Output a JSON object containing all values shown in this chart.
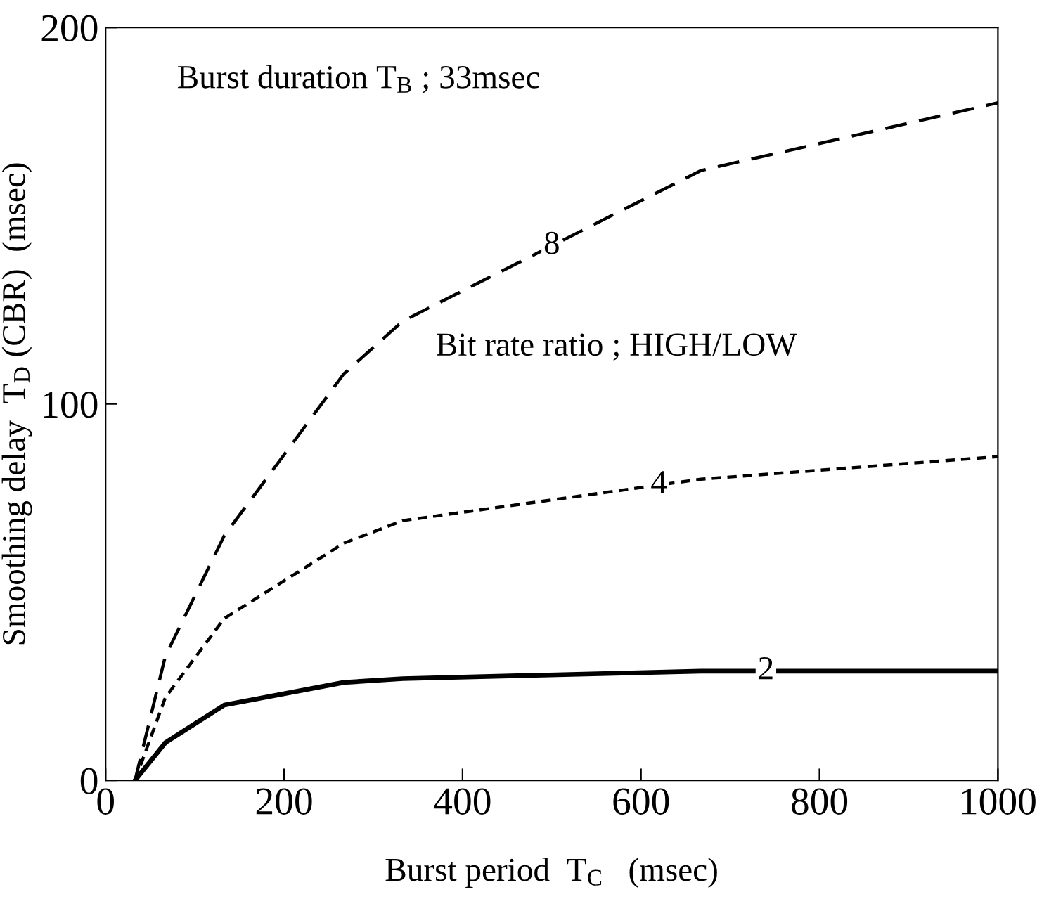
{
  "chart_data": {
    "type": "line",
    "xlabel": "Burst period  T$_{C}$   (msec)",
    "ylabel": "Smoothing delay  T$_{D}$ (CBR)  (msec)",
    "annotations": [
      "Burst duration T$_{B}$ ; 33msec",
      "Bit rate ratio ; HIGH/LOW"
    ],
    "x": [
      33,
      67,
      133,
      267,
      333,
      667,
      1000
    ],
    "series": [
      {
        "name": "2",
        "color": "#000000",
        "line_style": "solid",
        "values": [
          0,
          10,
          20,
          26,
          27,
          29,
          29
        ]
      },
      {
        "name": "4",
        "color": "#000000",
        "line_style": "dotted",
        "values": [
          0,
          22,
          43,
          63,
          69,
          80,
          86
        ]
      },
      {
        "name": "8",
        "color": "#000000",
        "line_style": "dashed",
        "values": [
          0,
          33,
          65,
          108,
          122,
          162,
          180
        ]
      }
    ],
    "xlim": [
      0,
      1000
    ],
    "ylim": [
      0,
      200
    ],
    "xticks": [
      0,
      200,
      400,
      600,
      800,
      1000
    ],
    "yticks": [
      0,
      100,
      200
    ],
    "grid": false,
    "legend": false,
    "marker": "none"
  }
}
